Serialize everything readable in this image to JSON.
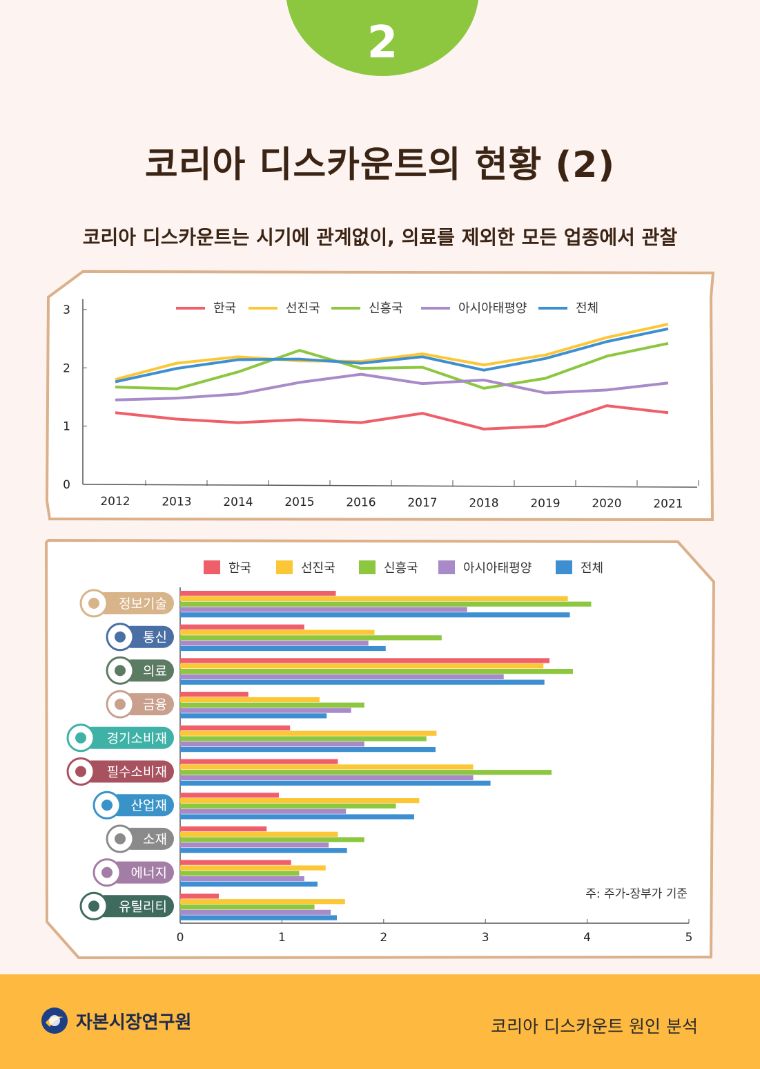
{
  "badge": {
    "number": "2",
    "color": "#8dc63f"
  },
  "title": "코리아 디스카운트의 현황 (2)",
  "subtitle": "코리아 디스카운트는 시기에 관계없이, 의료를 제외한 모든 업종에서 관찰",
  "colors": {
    "background": "#fdf4f1",
    "frame": "#dbb08a",
    "footer": "#fdb940",
    "series": [
      "#ee5f6a",
      "#fcc736",
      "#8dc63f",
      "#a88ac8",
      "#3d8fd1"
    ]
  },
  "chart_data": [
    {
      "type": "line",
      "title": "",
      "xlabel": "",
      "ylabel": "",
      "x": [
        "2012",
        "2013",
        "2014",
        "2015",
        "2016",
        "2017",
        "2018",
        "2019",
        "2020",
        "2021"
      ],
      "ylim": [
        0,
        3
      ],
      "yticks": [
        "0",
        "1",
        "2",
        "3"
      ],
      "legend_position": "top",
      "series": [
        {
          "name": "한국",
          "values": [
            1.23,
            1.12,
            1.06,
            1.11,
            1.06,
            1.22,
            0.95,
            1.0,
            1.35,
            1.23
          ]
        },
        {
          "name": "선진국",
          "values": [
            1.8,
            2.08,
            2.19,
            2.12,
            2.11,
            2.24,
            2.05,
            2.22,
            2.52,
            2.75
          ]
        },
        {
          "name": "신흥국",
          "values": [
            1.67,
            1.64,
            1.93,
            2.3,
            1.99,
            2.01,
            1.65,
            1.82,
            2.2,
            2.42
          ]
        },
        {
          "name": "아시아태평양",
          "values": [
            1.45,
            1.48,
            1.55,
            1.75,
            1.89,
            1.73,
            1.79,
            1.57,
            1.62,
            1.74
          ]
        },
        {
          "name": "전체",
          "values": [
            1.76,
            1.99,
            2.14,
            2.15,
            2.08,
            2.19,
            1.96,
            2.16,
            2.45,
            2.67
          ]
        }
      ]
    },
    {
      "type": "bar",
      "orientation": "horizontal",
      "title": "",
      "xlabel": "",
      "ylabel": "",
      "xlim": [
        0,
        5
      ],
      "xticks": [
        "0",
        "1",
        "2",
        "3",
        "4",
        "5"
      ],
      "legend_position": "top",
      "note": "주: 주가-장부가 기준",
      "categories": [
        "정보기술",
        "통신",
        "의료",
        "금융",
        "경기소비재",
        "필수소비재",
        "산업재",
        "소재",
        "에너지",
        "유틸리티"
      ],
      "category_icons": [
        "network-icon",
        "signal-icon",
        "medical-cross-icon",
        "coin-icon",
        "gift-icon",
        "basket-icon",
        "box-icon",
        "gear-icon",
        "lightning-icon",
        "recycle-icon"
      ],
      "category_colors": [
        "#d8b48a",
        "#4a6fa5",
        "#5b7b63",
        "#c9a08e",
        "#3fb2a7",
        "#a8515f",
        "#3a93c8",
        "#8a8a8a",
        "#a47da7",
        "#3e6b5e"
      ],
      "series": [
        {
          "name": "한국",
          "values": [
            1.53,
            1.22,
            3.63,
            0.67,
            1.08,
            1.55,
            0.97,
            0.85,
            1.09,
            0.38
          ]
        },
        {
          "name": "선진국",
          "values": [
            3.81,
            1.91,
            3.57,
            1.37,
            2.52,
            2.88,
            2.35,
            1.55,
            1.43,
            1.62
          ]
        },
        {
          "name": "신흥국",
          "values": [
            4.04,
            2.57,
            3.86,
            1.81,
            2.42,
            3.65,
            2.12,
            1.81,
            1.17,
            1.32
          ]
        },
        {
          "name": "아시아태평양",
          "values": [
            2.82,
            1.85,
            3.18,
            1.68,
            1.81,
            2.88,
            1.63,
            1.46,
            1.22,
            1.48
          ]
        },
        {
          "name": "전체",
          "values": [
            3.83,
            2.02,
            3.58,
            1.44,
            2.51,
            3.05,
            2.3,
            1.64,
            1.35,
            1.54
          ]
        }
      ]
    }
  ],
  "footer": {
    "organization": "자본시장연구원",
    "report_title": "코리아 디스카운트 원인 분석"
  }
}
